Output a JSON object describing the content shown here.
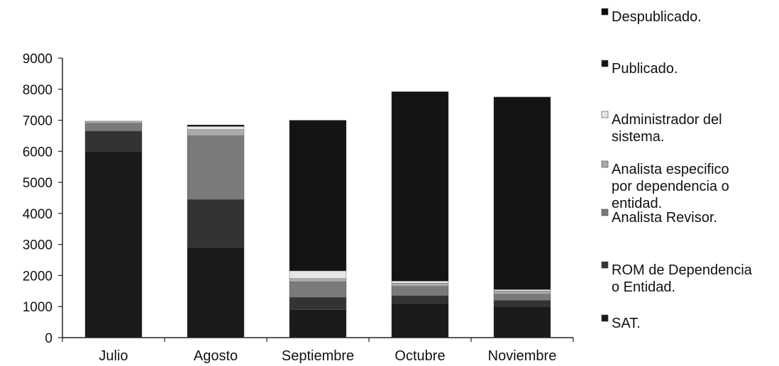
{
  "chart_data": {
    "type": "bar",
    "stacked": true,
    "categories": [
      "Julio",
      "Agosto",
      "Septiembre",
      "Octubre",
      "Noviembre"
    ],
    "ylim": [
      0,
      9000
    ],
    "yticks": [
      0,
      1000,
      2000,
      3000,
      4000,
      5000,
      6000,
      7000,
      8000,
      9000
    ],
    "legend_position": "right",
    "grid": false,
    "series": [
      {
        "name": "SAT.",
        "color": "#1a1a1a",
        "values": [
          6000,
          2900,
          900,
          1100,
          1000
        ]
      },
      {
        "name": "ROM de Dependencia o Entidad.",
        "color": "#333333",
        "values": [
          650,
          1550,
          400,
          250,
          200
        ]
      },
      {
        "name": "Analista Revisor.",
        "color": "#7a7a7a",
        "values": [
          250,
          2050,
          500,
          300,
          200
        ]
      },
      {
        "name": "Analista especifico por dependencia o entidad.",
        "color": "#aaaaaa",
        "values": [
          50,
          200,
          100,
          100,
          100
        ]
      },
      {
        "name": "Administrador del sistema.",
        "color": "#e6e6e6",
        "values": [
          20,
          100,
          250,
          70,
          50
        ]
      },
      {
        "name": "Publicado.",
        "color": "#141414",
        "values": [
          0,
          0,
          4850,
          6100,
          6200
        ]
      },
      {
        "name": "Despublicado.",
        "color": "#0a0a0a",
        "values": [
          0,
          50,
          0,
          0,
          0
        ]
      }
    ],
    "legend_order": [
      "Despublicado.",
      "Publicado.",
      "Administrador del sistema.",
      "Analista especifico por dependencia o entidad.",
      "Analista Revisor.",
      "ROM de Dependencia o Entidad.",
      "SAT."
    ],
    "legend_lines": [
      [
        "Despublicado."
      ],
      [
        "Publicado."
      ],
      [
        "Administrador del",
        "sistema."
      ],
      [
        "Analista especifico",
        "por dependencia o",
        "entidad."
      ],
      [
        "Analista Revisor."
      ],
      [
        "ROM de Dependencia",
        "o Entidad."
      ],
      [
        "SAT."
      ]
    ]
  }
}
